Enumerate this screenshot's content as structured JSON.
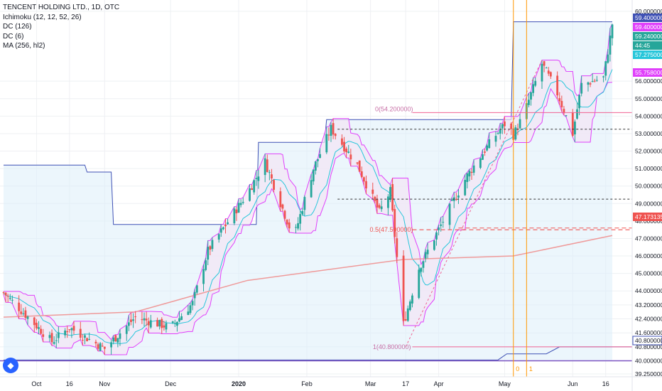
{
  "legend": {
    "title": "TENCENT HOLDING LTD., 1D, OTC",
    "ichimoku": "Ichimoku (12, 12, 52, 26)",
    "dc126": "DC (126)",
    "dc6": "DC (6)",
    "ma": "MA (256, hl2)"
  },
  "colors": {
    "up": "#26a69a",
    "down": "#ef5350",
    "dc6": "#e040fb",
    "dc126": "#3f51b5",
    "ma": "#ef9a9a",
    "kijun": "#26c6da",
    "fib": "#f06292",
    "vline": "#ff9800",
    "cloud": "#dceefa"
  },
  "price_axis_labels": [
    "60.000000",
    "59.400000",
    "59.400000",
    "59.240000",
    "44:45",
    "57.275000",
    "56.000000",
    "55.758000",
    "55.000000",
    "54.000000",
    "53.000000",
    "52.000000",
    "51.000000",
    "50.000000",
    "49.000000",
    "48.000000",
    "47.173135",
    "47.000000",
    "46.000000",
    "45.000000",
    "44.000000",
    "43.200000",
    "42.400000",
    "41.600000",
    "40.800000",
    "40.000000",
    "39.250000"
  ],
  "vertical_marker_labels": [
    "0",
    "1"
  ],
  "fib_labels": {
    "f0": "0(54.200000)",
    "f05": "0.5(47.500000)",
    "f1": "1(40.800000)"
  },
  "chart_data": {
    "type": "candlestick",
    "title": "TENCENT HOLDING LTD., 1D, OTC",
    "y_range": [
      39.25,
      60.4
    ],
    "x_tick_labels": [
      "Oct",
      "16",
      "Nov",
      "Dec",
      "2020",
      "Feb",
      "Mar",
      "17",
      "Apr",
      "May",
      "Jun",
      "16"
    ],
    "price_labels": [
      {
        "value": 59.4,
        "label": "59.400000",
        "color": "#3f51b5"
      },
      {
        "value": 59.4,
        "label": "59.400000",
        "color": "#e040fb"
      },
      {
        "value": 59.24,
        "label": "59.240000",
        "color": "#26a69a"
      },
      {
        "value": 57.275,
        "label": "57.275000",
        "color": "#26c6da"
      },
      {
        "value": 55.758,
        "label": "55.758000",
        "color": "#e040fb"
      },
      {
        "value": 47.173135,
        "label": "47.173135",
        "color": "#ef5350"
      },
      {
        "value": 40.8,
        "label": "40.800000",
        "color": "#3f51b5"
      }
    ],
    "fibonacci": [
      {
        "level": "0",
        "price": 54.2
      },
      {
        "level": "0.5",
        "price": 47.5
      },
      {
        "level": "1",
        "price": 40.8
      }
    ],
    "horizontal_lines": [
      53.25,
      49.25,
      47.6
    ],
    "key_points": [
      {
        "date": "2019-09-16",
        "close": 43.9
      },
      {
        "date": "2019-10-01",
        "close": 42.0
      },
      {
        "date": "2019-10-08",
        "close": 41.1
      },
      {
        "date": "2019-10-16",
        "close": 41.9
      },
      {
        "date": "2019-11-01",
        "close": 40.7
      },
      {
        "date": "2019-11-15",
        "close": 42.5
      },
      {
        "date": "2019-12-01",
        "close": 41.9
      },
      {
        "date": "2019-12-11",
        "close": 43.3
      },
      {
        "date": "2019-12-18",
        "close": 46.3
      },
      {
        "date": "2020-01-05",
        "close": 49.6
      },
      {
        "date": "2020-01-13",
        "close": 51.4
      },
      {
        "date": "2020-01-26",
        "close": 47.0
      },
      {
        "date": "2020-02-04",
        "close": 51.0
      },
      {
        "date": "2020-02-12",
        "close": 53.3
      },
      {
        "date": "2020-02-24",
        "close": 51.2
      },
      {
        "date": "2020-03-05",
        "close": 48.5
      },
      {
        "date": "2020-03-10",
        "close": 49.7
      },
      {
        "date": "2020-03-16",
        "close": 42.1
      },
      {
        "date": "2020-03-23",
        "close": 45.3
      },
      {
        "date": "2020-04-05",
        "close": 48.5
      },
      {
        "date": "2020-04-14",
        "close": 50.6
      },
      {
        "date": "2020-04-25",
        "close": 52.6
      },
      {
        "date": "2020-05-02",
        "close": 53.7
      },
      {
        "date": "2020-05-05",
        "close": 52.9
      },
      {
        "date": "2020-05-10",
        "close": 54.2
      },
      {
        "date": "2020-05-18",
        "close": 57.0
      },
      {
        "date": "2020-05-25",
        "close": 55.3
      },
      {
        "date": "2020-06-01",
        "close": 53.0
      },
      {
        "date": "2020-06-05",
        "close": 55.8
      },
      {
        "date": "2020-06-15",
        "close": 56.2
      },
      {
        "date": "2020-06-19",
        "close": 59.24
      }
    ],
    "ma_points": [
      {
        "date": "2019-09-16",
        "value": 42.5
      },
      {
        "date": "2019-11-15",
        "value": 42.8
      },
      {
        "date": "2020-01-05",
        "value": 44.6
      },
      {
        "date": "2020-03-16",
        "value": 45.8
      },
      {
        "date": "2020-05-05",
        "value": 46.0
      },
      {
        "date": "2020-06-19",
        "value": 47.17
      }
    ],
    "dc126_points": [
      {
        "date": "2019-09-16",
        "value": 51.2
      },
      {
        "date": "2019-10-24",
        "value": 50.8
      },
      {
        "date": "2019-11-05",
        "value": 47.8
      },
      {
        "date": "2020-01-10",
        "value": 52.5
      },
      {
        "date": "2020-02-10",
        "value": 53.8
      },
      {
        "date": "2020-05-05",
        "value": 59.4
      }
    ],
    "markers": [
      {
        "label": "0",
        "date": "2020-05-05"
      },
      {
        "label": "1",
        "date": "2020-05-11"
      }
    ]
  }
}
